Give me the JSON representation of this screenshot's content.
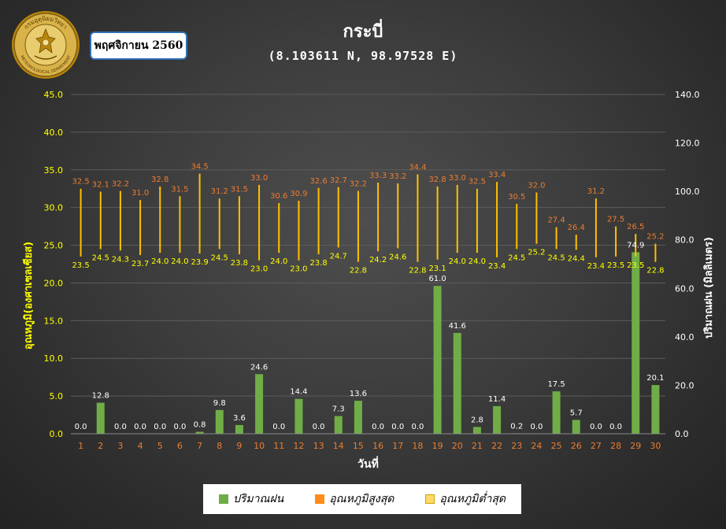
{
  "header": {
    "title": "กระบี่",
    "subtitle": "(8.103611 N, 98.97528 E)",
    "month_label": "พฤศจิกายน 2560",
    "logo_text": "กรมอุตุนิยมวิทยา METEOROLOGICAL DEPARTMENT"
  },
  "colors": {
    "rain": "#70ad47",
    "max_label": "#ed7d31",
    "min_label": "#ffff00",
    "range_line": "#ffc000",
    "legend_max": "#ff8c1a",
    "legend_min": "#ffd966",
    "left_axis": "#ffff00",
    "right_axis": "#ffffff",
    "day_labels": "#ed7d31"
  },
  "chart_data": {
    "type": "bar",
    "xlabel": "วันที่",
    "ylabel_left": "อุณหภูมิ(องศาเซลเซียส)",
    "ylabel_right": "ปริมาณฝน (มิลลิเมตร)",
    "ylim_left": [
      0,
      45
    ],
    "ylim_right": [
      0,
      140
    ],
    "left_ticks": [
      "0.0",
      "5.0",
      "10.0",
      "15.0",
      "20.0",
      "25.0",
      "30.0",
      "35.0",
      "40.0",
      "45.0"
    ],
    "right_ticks": [
      "0.0",
      "20.0",
      "40.0",
      "60.0",
      "80.0",
      "100.0",
      "120.0",
      "140.0"
    ],
    "categories": [
      "1",
      "2",
      "3",
      "4",
      "5",
      "6",
      "7",
      "8",
      "9",
      "10",
      "11",
      "12",
      "13",
      "14",
      "15",
      "16",
      "17",
      "18",
      "19",
      "20",
      "21",
      "22",
      "23",
      "24",
      "25",
      "26",
      "27",
      "28",
      "29",
      "30"
    ],
    "series": [
      {
        "name": "ปริมาณฝน",
        "type": "bar",
        "axis": "right",
        "values": [
          0.0,
          12.8,
          0.0,
          0.0,
          0.0,
          0.0,
          0.8,
          9.8,
          3.6,
          24.6,
          0.0,
          14.4,
          0.0,
          7.3,
          13.6,
          0.0,
          0.0,
          0.0,
          61.0,
          41.6,
          2.8,
          11.4,
          0.2,
          0.0,
          17.5,
          5.7,
          0.0,
          0.0,
          74.9,
          20.1
        ],
        "labels": [
          "0.0",
          "12.8",
          "0.0",
          "0.0",
          "0.0",
          "0.0",
          "0.8",
          "9.8",
          "3.6",
          "24.6",
          "0.0",
          "14.4",
          "0.0",
          "7.3",
          "13.6",
          "0.0",
          "0.0",
          "0.0",
          "61.0",
          "41.6",
          "2.8",
          "11.4",
          "0.2",
          "0.0",
          "17.5",
          "5.7",
          "0.0",
          "0.0",
          "74.9",
          "20.1"
        ]
      },
      {
        "name": "อุณหภูมิสูงสุด",
        "type": "line",
        "axis": "left",
        "values": [
          32.5,
          32.1,
          32.2,
          31.0,
          32.8,
          31.5,
          34.5,
          31.2,
          31.5,
          33.0,
          30.6,
          30.9,
          32.6,
          32.7,
          32.2,
          33.3,
          33.2,
          34.4,
          32.8,
          33.0,
          32.5,
          33.4,
          30.5,
          32.0,
          27.4,
          26.4,
          31.2,
          27.5,
          26.5,
          25.2
        ],
        "labels": [
          "32.5",
          "32.1",
          "32.2",
          "31.0",
          "32.8",
          "31.5",
          "34.5",
          "31.2",
          "31.5",
          "33.0",
          "30.6",
          "30.9",
          "32.6",
          "32.7",
          "32.2",
          "33.3",
          "33.2",
          "34.4",
          "32.8",
          "33.0",
          "32.5",
          "33.4",
          "30.5",
          "32.0",
          "27.4",
          "26.4",
          "31.2",
          "27.5",
          "26.5",
          "25.2"
        ]
      },
      {
        "name": "อุณหภูมิต่ำสุด",
        "type": "line",
        "axis": "left",
        "values": [
          23.5,
          24.5,
          24.3,
          23.7,
          24.0,
          24.0,
          23.9,
          24.5,
          23.8,
          23.0,
          24.0,
          23.0,
          23.8,
          24.7,
          22.8,
          24.2,
          24.6,
          22.8,
          23.1,
          24.0,
          24.0,
          23.4,
          24.5,
          25.2,
          24.5,
          24.4,
          23.4,
          23.5,
          23.5,
          22.8
        ],
        "labels": [
          "23.5",
          "24.5",
          "24.3",
          "23.7",
          "24.0",
          "24.0",
          "23.9",
          "24.5",
          "23.8",
          "23.0",
          "24.0",
          "23.0",
          "23.8",
          "24.7",
          "22.8",
          "24.2",
          "24.6",
          "22.8",
          "23.1",
          "24.0",
          "24.0",
          "23.4",
          "24.5",
          "25.2",
          "24.5",
          "24.4",
          "23.4",
          "23.5",
          "23.5",
          "22.8"
        ]
      }
    ],
    "grid": true,
    "legend_position": "bottom"
  },
  "legend": {
    "rain": "ปริมาณฝน",
    "max": "อุณหภูมิสูงสุด",
    "min": "อุณหภูมิต่ำสุด"
  }
}
